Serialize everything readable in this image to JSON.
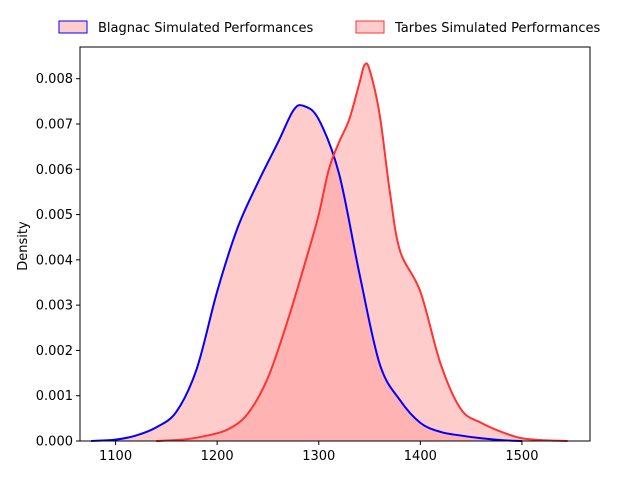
{
  "chart_data": {
    "type": "area",
    "title": "",
    "xlabel": "",
    "ylabel": "Density",
    "xlim": [
      1065,
      1567
    ],
    "ylim": [
      0,
      0.0087
    ],
    "x_ticks": [
      1100,
      1200,
      1300,
      1400,
      1500
    ],
    "x_tick_labels": [
      "1100",
      "1200",
      "1300",
      "1400",
      "1500"
    ],
    "y_ticks": [
      0,
      0.001,
      0.002,
      0.003,
      0.004,
      0.005,
      0.006,
      0.007,
      0.008
    ],
    "y_tick_labels": [
      "0.000",
      "0.001",
      "0.002",
      "0.003",
      "0.004",
      "0.005",
      "0.006",
      "0.007",
      "0.008"
    ],
    "grid": false,
    "legend_position": "top, outside plot, horizontal",
    "series": [
      {
        "name": "Blagnac Simulated Performances",
        "line_color": "#0000ff",
        "fill_color": "#ff9999",
        "fill_opacity": 0.5,
        "x": [
          1076,
          1100,
          1120,
          1140,
          1160,
          1180,
          1200,
          1220,
          1240,
          1260,
          1275,
          1285,
          1300,
          1320,
          1340,
          1360,
          1380,
          1400,
          1420,
          1440,
          1460,
          1480,
          1500
        ],
        "y": [
          0.0,
          3e-05,
          0.00012,
          0.0003,
          0.00065,
          0.0016,
          0.0033,
          0.0047,
          0.0057,
          0.0066,
          0.0073,
          0.0074,
          0.0071,
          0.0059,
          0.0037,
          0.0017,
          0.0009,
          0.0004,
          0.0002,
          0.00012,
          6e-05,
          2e-05,
          0.0
        ]
      },
      {
        "name": "Tarbes Simulated Performances",
        "line_color": "#ff3333",
        "fill_color": "#ff9999",
        "fill_opacity": 0.5,
        "x": [
          1140,
          1170,
          1190,
          1210,
          1230,
          1250,
          1270,
          1290,
          1300,
          1310,
          1320,
          1330,
          1340,
          1345,
          1350,
          1360,
          1370,
          1380,
          1400,
          1420,
          1440,
          1460,
          1480,
          1500,
          1520,
          1545
        ],
        "y": [
          0.0,
          4e-05,
          0.00012,
          0.00025,
          0.0006,
          0.0014,
          0.0027,
          0.0042,
          0.005,
          0.006,
          0.0066,
          0.0071,
          0.0079,
          0.0083,
          0.0082,
          0.0072,
          0.0055,
          0.0042,
          0.0033,
          0.0017,
          0.0007,
          0.0004,
          0.0002,
          6e-05,
          2e-05,
          0.0
        ]
      }
    ]
  }
}
